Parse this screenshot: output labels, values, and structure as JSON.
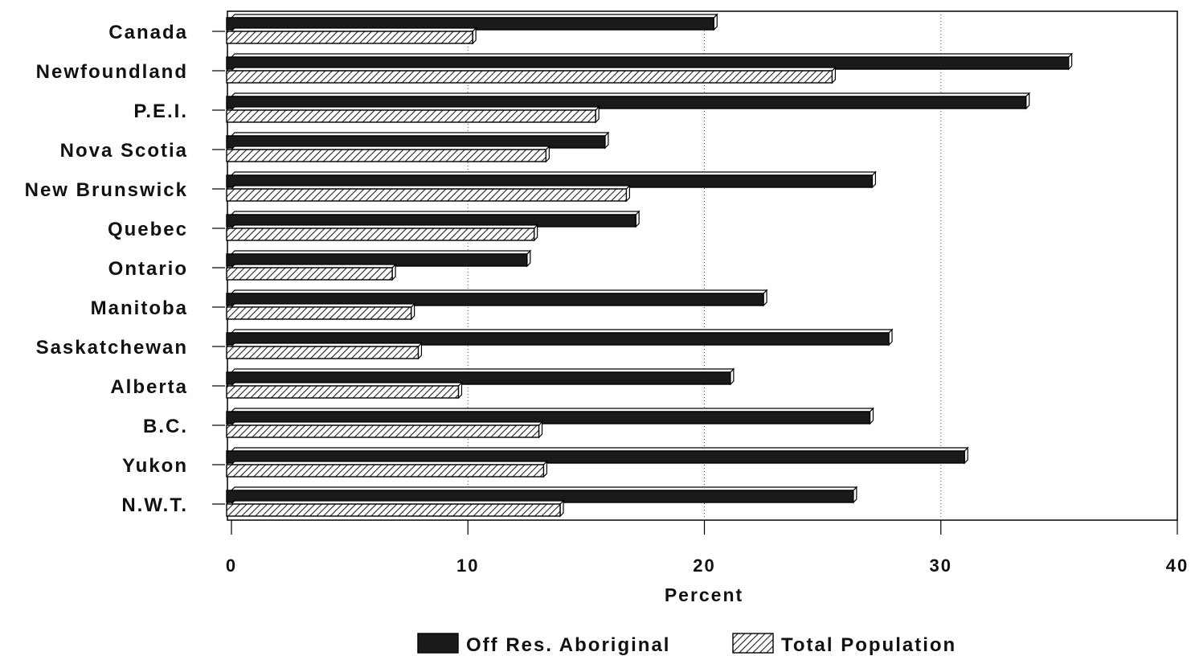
{
  "chart_data": {
    "type": "bar",
    "orientation": "horizontal",
    "categories": [
      "Canada",
      "Newfoundland",
      "P.E.I.",
      "Nova Scotia",
      "New Brunswick",
      "Quebec",
      "Ontario",
      "Manitoba",
      "Saskatchewan",
      "Alberta",
      "B.C.",
      "Yukon",
      "N.W.T."
    ],
    "series": [
      {
        "name": "Off Res. Aboriginal",
        "fill": "#1a1a1a",
        "values": [
          20.4,
          35.4,
          33.6,
          15.8,
          27.1,
          17.1,
          12.5,
          22.5,
          27.8,
          21.1,
          27.0,
          31.0,
          26.3
        ]
      },
      {
        "name": "Total Population",
        "fill": "hatch",
        "values": [
          10.2,
          25.4,
          15.4,
          13.3,
          16.7,
          12.8,
          6.8,
          7.6,
          7.9,
          9.6,
          13.0,
          13.2,
          13.9
        ]
      }
    ],
    "xlabel": "Percent",
    "xlim": [
      0,
      40
    ],
    "xticks": [
      "0",
      "10",
      "20",
      "30",
      "40"
    ],
    "grid": "vertical dotted",
    "legend_position": "bottom"
  }
}
